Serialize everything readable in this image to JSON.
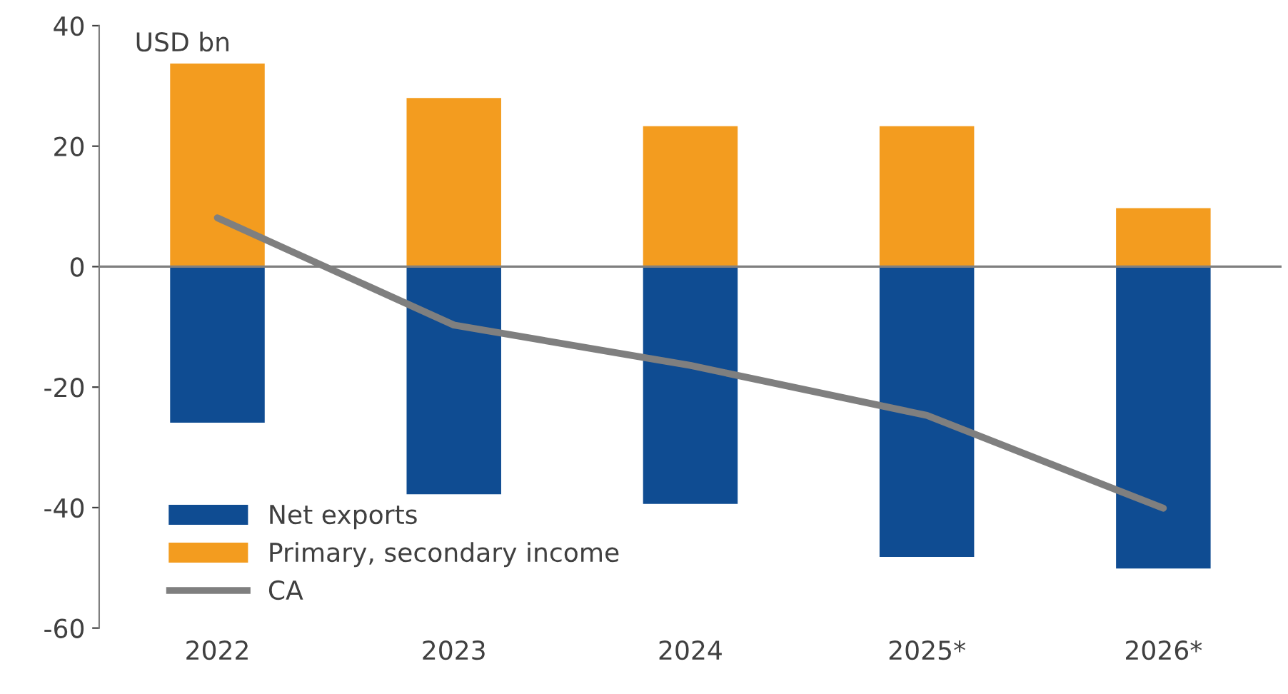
{
  "chart_data": {
    "type": "bar",
    "stacked": true,
    "ref_lines": [
      {
        "axis": "y",
        "value": 0,
        "color": "#7f7f7f"
      }
    ],
    "categories": [
      "2022",
      "2023",
      "2024",
      "2025*",
      "2026*"
    ],
    "series": [
      {
        "name": "Net exports",
        "color": "#0f4c92",
        "values": [
          -25.9,
          -37.8,
          -39.4,
          -48.2,
          -50.1
        ]
      },
      {
        "name": "Primary, secondary income",
        "color": "#f39c1f",
        "values": [
          33.7,
          28.0,
          23.3,
          23.3,
          9.7
        ]
      },
      {
        "name": "CA",
        "type": "line",
        "color": "#7f7f7f",
        "values": [
          8.1,
          -9.7,
          -16.4,
          -24.7,
          -40.1
        ]
      }
    ],
    "ylim": [
      -60,
      40
    ],
    "yticks": [
      -60,
      -40,
      -20,
      0,
      20,
      40
    ],
    "grid": false,
    "legend": "bottom left",
    "marker": "none",
    "line_style": "solid",
    "annotations": [
      "USD bn"
    ]
  }
}
